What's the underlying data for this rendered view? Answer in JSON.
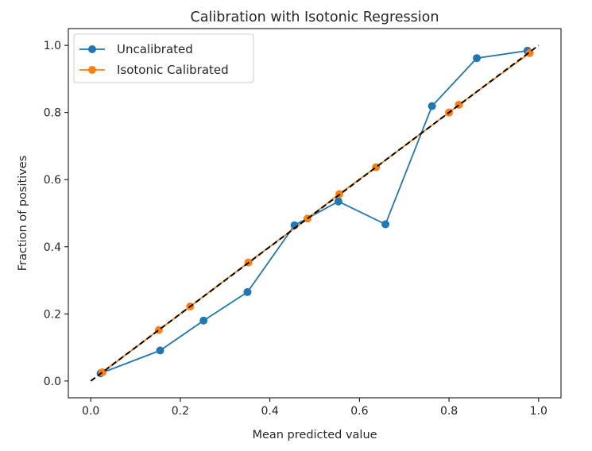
{
  "chart_data": {
    "type": "line",
    "title": "Calibration with Isotonic Regression",
    "xlabel": "Mean predicted value",
    "ylabel": "Fraction of positives",
    "xlim": [
      -0.05,
      1.05
    ],
    "ylim": [
      -0.05,
      1.05
    ],
    "xticks": [
      0.0,
      0.2,
      0.4,
      0.6,
      0.8,
      1.0
    ],
    "xtick_labels": [
      "0.0",
      "0.2",
      "0.4",
      "0.6",
      "0.8",
      "1.0"
    ],
    "yticks": [
      0.0,
      0.2,
      0.4,
      0.6,
      0.8,
      1.0
    ],
    "ytick_labels": [
      "0.0",
      "0.2",
      "0.4",
      "0.6",
      "0.8",
      "1.0"
    ],
    "grid": false,
    "legend_position": "top-left",
    "series": [
      {
        "name": "Uncalibrated",
        "color": "#1f77b4",
        "marker": "circle",
        "x": [
          0.022,
          0.155,
          0.252,
          0.35,
          0.455,
          0.553,
          0.658,
          0.762,
          0.862,
          0.975
        ],
        "y": [
          0.023,
          0.091,
          0.18,
          0.265,
          0.464,
          0.535,
          0.467,
          0.819,
          0.962,
          0.984
        ]
      },
      {
        "name": "Isotonic Calibrated",
        "color": "#ff7f0e",
        "marker": "circle",
        "x": [
          0.026,
          0.152,
          0.222,
          0.352,
          0.484,
          0.555,
          0.637,
          0.8,
          0.822,
          0.98
        ],
        "y": [
          0.026,
          0.152,
          0.222,
          0.353,
          0.484,
          0.557,
          0.637,
          0.8,
          0.823,
          0.977
        ]
      },
      {
        "name": "",
        "color": "#000000",
        "style": "dashed",
        "x": [
          0.0,
          1.0
        ],
        "y": [
          0.0,
          1.0
        ]
      }
    ]
  }
}
